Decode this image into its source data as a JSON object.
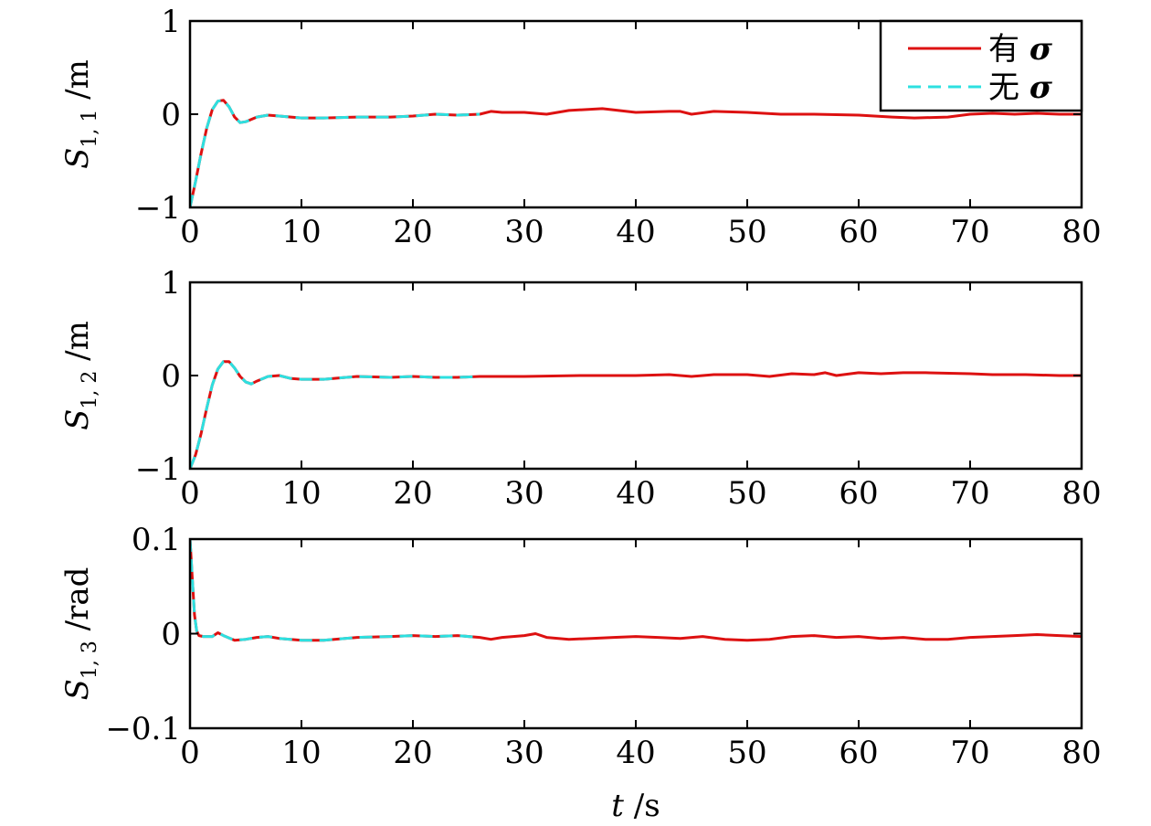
{
  "chart_data": [
    {
      "type": "line",
      "ylabel": {
        "main": "S",
        "sub": "1, 1",
        "unit": " /m"
      },
      "xlim": [
        0,
        80
      ],
      "ylim": [
        -1,
        1
      ],
      "xticks": [
        0,
        10,
        20,
        30,
        40,
        50,
        60,
        70,
        80
      ],
      "yticks": [
        -1,
        0,
        1
      ],
      "ytick_labels": [
        "−1",
        "0",
        "1"
      ],
      "legend": {
        "placement": "top-right"
      },
      "series": [
        {
          "name": "有 σ",
          "label_text": "有 ",
          "label_symbol": "σ",
          "color": "#dd1111",
          "style": "solid",
          "x": [
            0,
            0.5,
            1,
            1.5,
            2,
            2.5,
            3,
            3.5,
            4,
            4.5,
            5,
            6,
            7,
            8,
            10,
            12,
            15,
            18,
            20,
            22,
            24,
            26,
            27,
            28,
            30,
            32,
            34,
            37,
            40,
            43,
            44,
            45,
            47,
            50,
            53,
            56,
            60,
            63,
            65,
            68,
            70,
            72,
            74,
            76,
            78,
            80
          ],
          "y": [
            -1.0,
            -0.72,
            -0.42,
            -0.15,
            0.05,
            0.14,
            0.15,
            0.08,
            -0.03,
            -0.09,
            -0.08,
            -0.03,
            -0.01,
            -0.02,
            -0.04,
            -0.04,
            -0.03,
            -0.03,
            -0.02,
            0.0,
            -0.01,
            0.0,
            0.03,
            0.02,
            0.02,
            0.0,
            0.04,
            0.06,
            0.02,
            0.03,
            0.03,
            0.0,
            0.03,
            0.02,
            0.0,
            0.0,
            -0.01,
            -0.03,
            -0.04,
            -0.03,
            0.0,
            0.01,
            0.0,
            0.01,
            0.0,
            0.0
          ]
        },
        {
          "name": "无 σ",
          "label_text": "无 ",
          "label_symbol": "σ",
          "color": "#2de0e0",
          "style": "dashed",
          "x": [
            0,
            0.5,
            1,
            1.5,
            2,
            2.5,
            3,
            3.5,
            4,
            4.5,
            5,
            6,
            7,
            8,
            10,
            12,
            15,
            18,
            20,
            22,
            24,
            26
          ],
          "y": [
            -1.0,
            -0.72,
            -0.42,
            -0.15,
            0.05,
            0.14,
            0.15,
            0.08,
            -0.03,
            -0.09,
            -0.08,
            -0.03,
            -0.01,
            -0.02,
            -0.04,
            -0.04,
            -0.03,
            -0.03,
            -0.02,
            0.0,
            -0.01,
            0.0
          ]
        }
      ]
    },
    {
      "type": "line",
      "ylabel": {
        "main": "S",
        "sub": "1, 2",
        "unit": " /m"
      },
      "xlim": [
        0,
        80
      ],
      "ylim": [
        -1,
        1
      ],
      "xticks": [
        0,
        10,
        20,
        30,
        40,
        50,
        60,
        70,
        80
      ],
      "yticks": [
        -1,
        0,
        1
      ],
      "ytick_labels": [
        "−1",
        "0",
        "1"
      ],
      "series": [
        {
          "name": "有 σ",
          "color": "#dd1111",
          "style": "solid",
          "x": [
            0,
            0.5,
            1,
            1.5,
            2,
            2.5,
            3,
            3.5,
            4,
            4.5,
            5,
            5.5,
            6,
            7,
            8,
            9,
            10,
            12,
            15,
            18,
            20,
            22,
            24,
            26,
            28,
            30,
            35,
            40,
            43,
            45,
            47,
            50,
            52,
            54,
            56,
            57,
            58,
            60,
            62,
            64,
            66,
            70,
            72,
            75,
            78,
            80
          ],
          "y": [
            -1.0,
            -0.85,
            -0.62,
            -0.35,
            -0.1,
            0.07,
            0.15,
            0.15,
            0.08,
            -0.01,
            -0.07,
            -0.09,
            -0.06,
            -0.01,
            0.0,
            -0.03,
            -0.04,
            -0.04,
            -0.01,
            -0.02,
            -0.01,
            -0.02,
            -0.02,
            -0.01,
            -0.01,
            -0.01,
            0.0,
            0.0,
            0.01,
            -0.01,
            0.01,
            0.01,
            -0.01,
            0.02,
            0.01,
            0.03,
            0.0,
            0.03,
            0.02,
            0.03,
            0.03,
            0.02,
            0.01,
            0.01,
            0.0,
            0.0
          ]
        },
        {
          "name": "无 σ",
          "color": "#2de0e0",
          "style": "dashed",
          "x": [
            0,
            0.5,
            1,
            1.5,
            2,
            2.5,
            3,
            3.5,
            4,
            4.5,
            5,
            5.5,
            6,
            7,
            8,
            9,
            10,
            12,
            15,
            18,
            20,
            22,
            24,
            26
          ],
          "y": [
            -1.0,
            -0.85,
            -0.62,
            -0.35,
            -0.1,
            0.07,
            0.15,
            0.15,
            0.08,
            -0.01,
            -0.07,
            -0.09,
            -0.06,
            -0.01,
            0.0,
            -0.03,
            -0.04,
            -0.04,
            -0.01,
            -0.02,
            -0.01,
            -0.02,
            -0.02,
            -0.01
          ]
        }
      ]
    },
    {
      "type": "line",
      "ylabel": {
        "main": "S",
        "sub": "1, 3",
        "unit": " /rad"
      },
      "xlabel": {
        "main": "t",
        "unit": " /s"
      },
      "xlim": [
        0,
        80
      ],
      "ylim": [
        -0.1,
        0.1
      ],
      "xticks": [
        0,
        10,
        20,
        30,
        40,
        50,
        60,
        70,
        80
      ],
      "yticks": [
        -0.1,
        0,
        0.1
      ],
      "ytick_labels": [
        "−0.1",
        "0",
        "0.1"
      ],
      "series": [
        {
          "name": "有 σ",
          "color": "#dd1111",
          "style": "solid",
          "x": [
            0,
            0.2,
            0.4,
            0.6,
            0.8,
            1.2,
            2,
            2.5,
            3,
            4,
            5,
            6,
            7,
            8,
            10,
            12,
            15,
            18,
            20,
            22,
            24,
            26,
            27,
            28,
            30,
            31,
            32,
            34,
            36,
            38,
            40,
            42,
            44,
            46,
            48,
            50,
            52,
            54,
            56,
            58,
            60,
            62,
            64,
            66,
            68,
            70,
            72,
            74,
            76,
            78,
            80
          ],
          "y": [
            0.1,
            0.06,
            0.02,
            0.003,
            -0.002,
            -0.003,
            -0.003,
            0.001,
            -0.002,
            -0.007,
            -0.006,
            -0.004,
            -0.003,
            -0.005,
            -0.007,
            -0.007,
            -0.004,
            -0.003,
            -0.002,
            -0.003,
            -0.002,
            -0.004,
            -0.006,
            -0.004,
            -0.002,
            0.0,
            -0.004,
            -0.006,
            -0.005,
            -0.004,
            -0.003,
            -0.004,
            -0.005,
            -0.003,
            -0.006,
            -0.007,
            -0.006,
            -0.003,
            -0.002,
            -0.004,
            -0.003,
            -0.005,
            -0.004,
            -0.006,
            -0.006,
            -0.004,
            -0.003,
            -0.002,
            -0.001,
            -0.002,
            -0.003
          ]
        },
        {
          "name": "无 σ",
          "color": "#2de0e0",
          "style": "dashed",
          "x": [
            0,
            0.2,
            0.4,
            0.6,
            0.8,
            1.2,
            2,
            2.5,
            3,
            4,
            5,
            6,
            7,
            8,
            10,
            12,
            15,
            18,
            20,
            22,
            24,
            26
          ],
          "y": [
            0.1,
            0.06,
            0.02,
            0.003,
            -0.002,
            -0.003,
            -0.003,
            0.001,
            -0.002,
            -0.007,
            -0.006,
            -0.004,
            -0.003,
            -0.005,
            -0.007,
            -0.007,
            -0.004,
            -0.003,
            -0.002,
            -0.003,
            -0.002,
            -0.004
          ]
        }
      ]
    }
  ]
}
